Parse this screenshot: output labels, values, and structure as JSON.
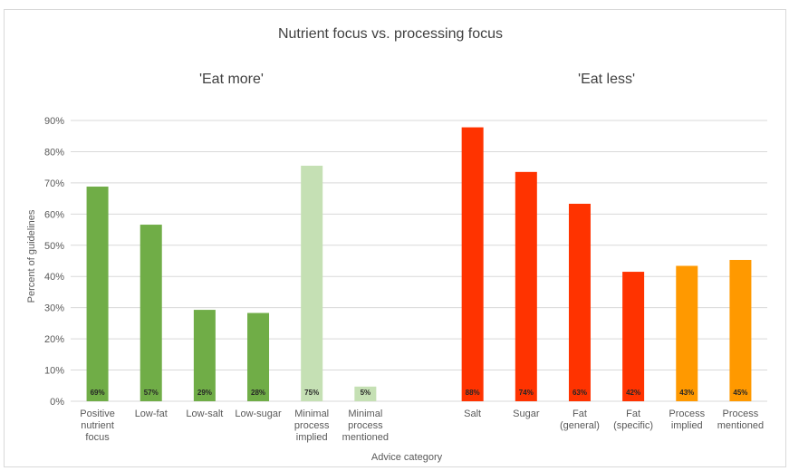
{
  "chart_data": {
    "type": "bar",
    "title": "Nutrient focus vs. processing focus",
    "xlabel": "Advice category",
    "ylabel": "Percent of guidelines",
    "ylim": [
      0,
      90
    ],
    "y_ticks": [
      "0%",
      "10%",
      "20%",
      "30%",
      "40%",
      "50%",
      "60%",
      "70%",
      "80%",
      "90%"
    ],
    "grid": true,
    "groups": [
      {
        "label": "'Eat more'",
        "start": 0,
        "end": 5
      },
      {
        "label": "'Eat less'",
        "start": 6,
        "end": 11
      }
    ],
    "categories": [
      "Positive nutrient focus",
      "Low-fat",
      "Low-salt",
      "Low-sugar",
      "Minimal process implied",
      "Minimal process mentioned",
      "Salt",
      "Sugar",
      "Fat (general)",
      "Fat (specific)",
      "Process implied",
      "Process mentioned"
    ],
    "category_lines": [
      [
        "Positive",
        "nutrient",
        "focus"
      ],
      [
        "Low-fat"
      ],
      [
        "Low-salt"
      ],
      [
        "Low-sugar"
      ],
      [
        "Minimal",
        "process",
        "implied"
      ],
      [
        "Minimal",
        "process",
        "mentioned"
      ],
      [
        "Salt"
      ],
      [
        "Sugar"
      ],
      [
        "Fat",
        "(general)"
      ],
      [
        "Fat",
        "(specific)"
      ],
      [
        "Process",
        "implied"
      ],
      [
        "Process",
        "mentioned"
      ]
    ],
    "values": [
      68.8,
      56.6,
      29.3,
      28.3,
      75.5,
      4.7,
      87.8,
      73.5,
      63.3,
      41.5,
      43.4,
      45.3
    ],
    "data_labels": [
      "69%",
      "57%",
      "29%",
      "28%",
      "75%",
      "5%",
      "88%",
      "74%",
      "63%",
      "42%",
      "43%",
      "45%"
    ],
    "colors": [
      "#70ad47",
      "#70ad47",
      "#70ad47",
      "#70ad47",
      "#c5e0b4",
      "#c5e0b4",
      "#ff3300",
      "#ff3300",
      "#ff3300",
      "#ff3300",
      "#ff9900",
      "#ff9900"
    ]
  }
}
